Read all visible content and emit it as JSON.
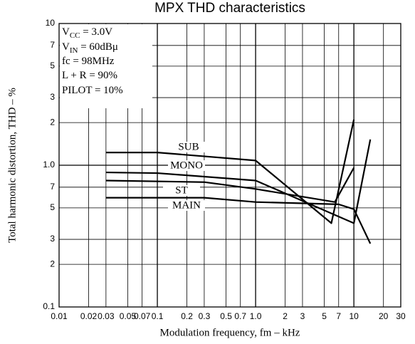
{
  "chart_data": {
    "type": "line",
    "title": "MPX THD characteristics",
    "x_label": "Modulation frequency, fm  –  kHz",
    "y_label": "Total harmonic distortion, THD  –  %",
    "xscale": "log",
    "yscale": "log",
    "grid": true,
    "color": "#000000",
    "xlim": [
      0.01,
      30
    ],
    "ylim": [
      0.1,
      10
    ],
    "xticks": [
      0.01,
      0.02,
      0.03,
      0.05,
      0.07,
      0.1,
      0.2,
      0.3,
      0.5,
      0.7,
      {
        "value": 1,
        "label": "1.0"
      },
      2,
      3,
      5,
      7,
      10,
      20,
      30
    ],
    "xtick_labels_override": null,
    "yticks": [
      0.1,
      {
        "value": 0.2,
        "label": "2"
      },
      {
        "value": 0.3,
        "label": "3"
      },
      {
        "value": 0.5,
        "label": "5"
      },
      {
        "value": 0.7,
        "label": "7"
      },
      {
        "value": 1,
        "label": "1.0"
      },
      2,
      3,
      5,
      7,
      10
    ],
    "conditions": [
      {
        "main": "V",
        "sub": "CC",
        "rest": " = 3.0V"
      },
      {
        "main": "V",
        "sub": "IN",
        "rest": " = 60dBμ"
      },
      {
        "main": "fc = 98MHz"
      },
      {
        "main": "L + R = 90%"
      },
      {
        "main": "PILOT = 10%"
      }
    ],
    "series": [
      {
        "name": "SUB",
        "x": [
          0.03,
          0.1,
          1,
          5.9,
          10
        ],
        "values": [
          1.23,
          1.23,
          1.08,
          0.39,
          2.1
        ]
      },
      {
        "name": "MONO",
        "x": [
          0.03,
          0.1,
          1,
          10,
          14.7
        ],
        "values": [
          0.89,
          0.88,
          0.78,
          0.39,
          1.52
        ]
      },
      {
        "name": "ST",
        "x": [
          0.03,
          0.3,
          1,
          6.4,
          10
        ],
        "values": [
          0.78,
          0.76,
          0.68,
          0.55,
          0.96
        ]
      },
      {
        "name": "MAIN",
        "x": [
          0.03,
          0.3,
          1,
          7,
          10,
          14.7
        ],
        "values": [
          0.59,
          0.59,
          0.55,
          0.53,
          0.49,
          0.28
        ]
      }
    ]
  }
}
